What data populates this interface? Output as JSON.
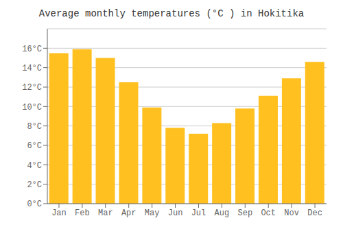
{
  "chart_data": {
    "type": "bar",
    "title": "Average monthly temperatures (°C ) in Hokitika",
    "categories": [
      "Jan",
      "Feb",
      "Mar",
      "Apr",
      "May",
      "Jun",
      "Jul",
      "Aug",
      "Sep",
      "Oct",
      "Nov",
      "Dec"
    ],
    "values": [
      15.5,
      15.9,
      15.0,
      12.5,
      9.9,
      7.8,
      7.2,
      8.3,
      9.8,
      11.1,
      12.9,
      14.6
    ],
    "color": "#FFC020",
    "ylim": [
      0,
      18
    ],
    "yticks": [
      {
        "value": 0,
        "label": "0°C"
      },
      {
        "value": 2,
        "label": "2°C"
      },
      {
        "value": 4,
        "label": "4°C"
      },
      {
        "value": 6,
        "label": "6°C"
      },
      {
        "value": 8,
        "label": "8°C"
      },
      {
        "value": 10,
        "label": "10°C"
      },
      {
        "value": 12,
        "label": "12°C"
      },
      {
        "value": 14,
        "label": "14°C"
      },
      {
        "value": 16,
        "label": "16°C"
      }
    ],
    "grid": true
  }
}
